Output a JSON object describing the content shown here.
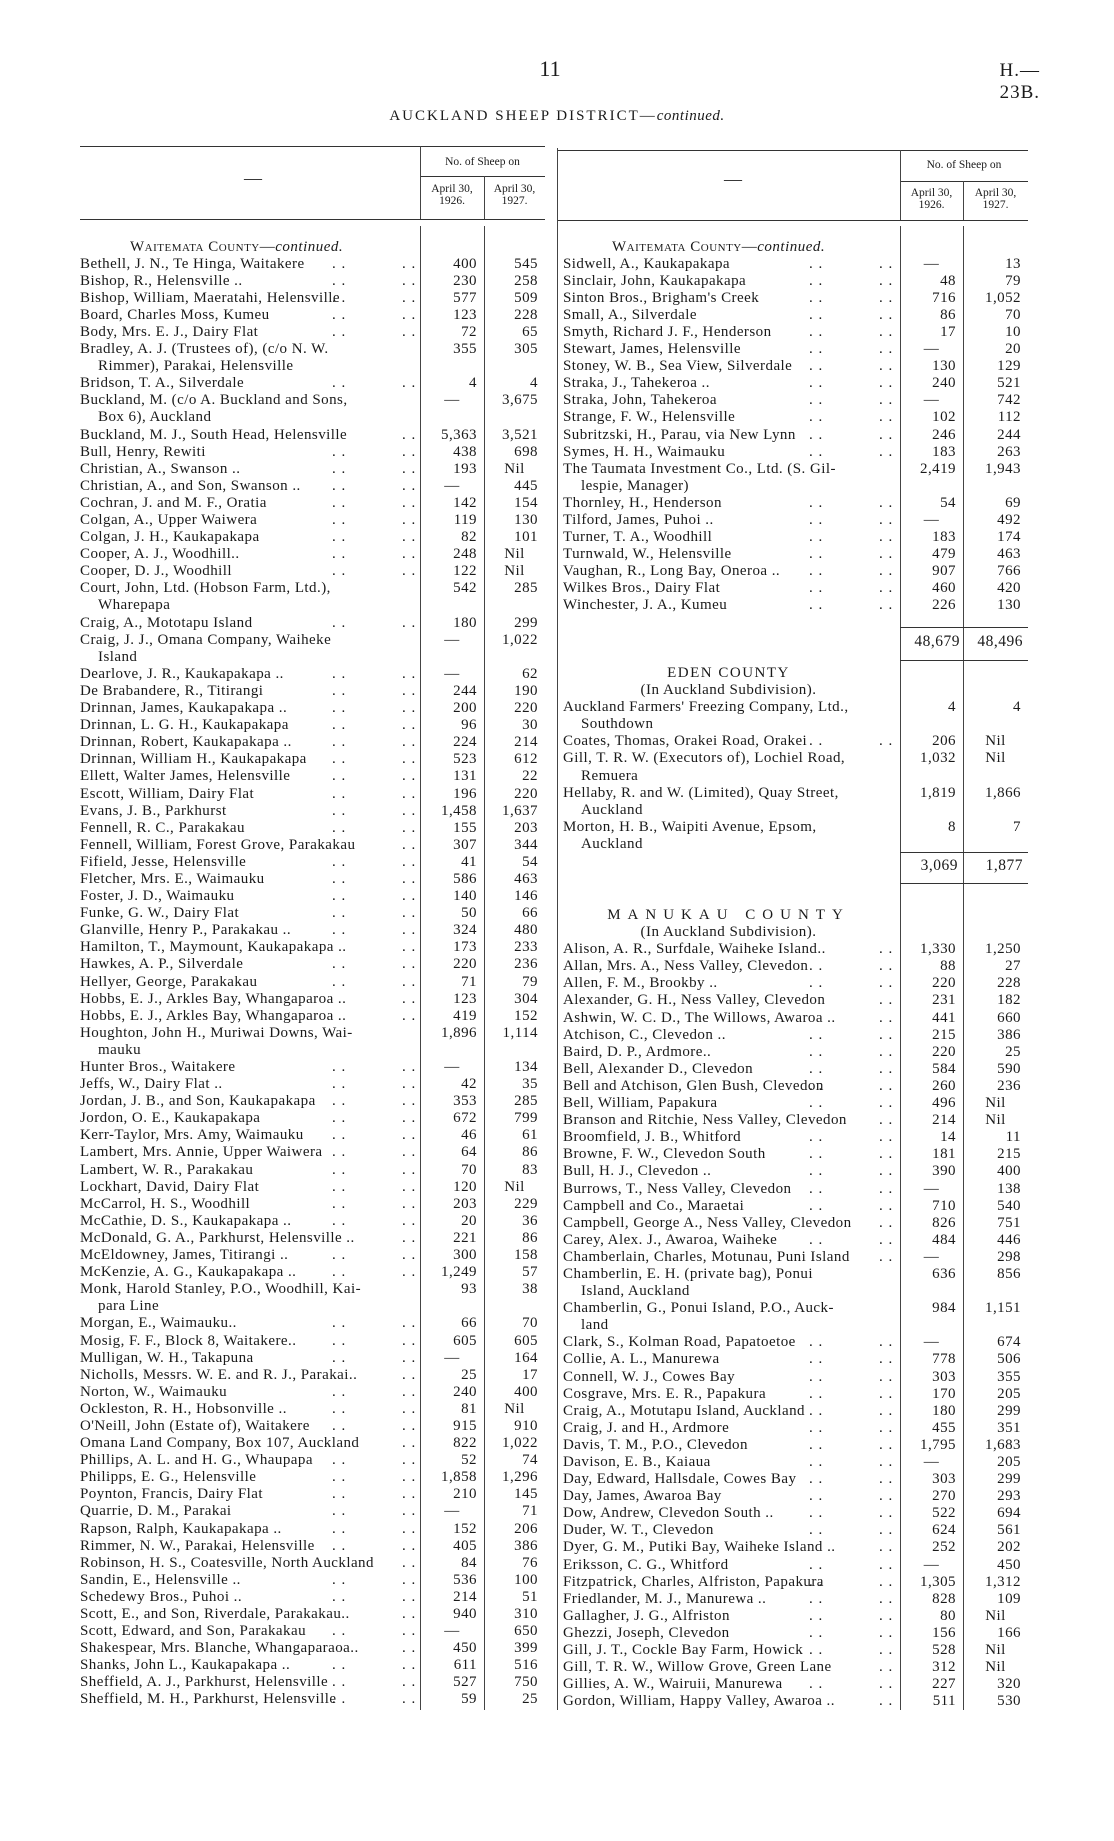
{
  "header": {
    "page_number": "11",
    "doc_ref": "H.—23B.",
    "title": "AUCKLAND SHEEP DISTRICT—",
    "title_italic": "continued."
  },
  "columns": {
    "name_header": "—",
    "group": "No. of Sheep on",
    "col1_line1": "April 30,",
    "col1_line2": "1926.",
    "col2_line1": "April 30,",
    "col2_line2": "1927."
  },
  "left": {
    "heading": "Waitemata County—",
    "heading_italic": "continued.",
    "rows": [
      [
        "Bethell, J. N., Te Hinga, Waitakere",
        "400",
        "545"
      ],
      [
        "Bishop, R., Helensville ..",
        "230",
        "258"
      ],
      [
        "Bishop, William, Maeratahi, Helensville",
        "577",
        "509"
      ],
      [
        "Board, Charles Moss, Kumeu",
        "123",
        "228"
      ],
      [
        "Body, Mrs. E. J., Dairy Flat",
        "72",
        "65"
      ],
      [
        "Bradley, A. J. (Trustees of), (c/o N. W.\nRimmer), Parakai, Helensville",
        "355",
        "305"
      ],
      [
        "Bridson, T. A., Silverdale",
        "4",
        "4"
      ],
      [
        "Buckland, M. (c/o A. Buckland and Sons,\nBox 6), Auckland",
        "—",
        "3,675"
      ],
      [
        "Buckland, M. J., South Head, Helensville",
        "5,363",
        "3,521"
      ],
      [
        "Bull, Henry, Rewiti",
        "438",
        "698"
      ],
      [
        "Christian, A., Swanson ..",
        "193",
        "Nil"
      ],
      [
        "Christian, A., and Son, Swanson ..",
        "—",
        "445"
      ],
      [
        "Cochran, J. and M. F., Oratia",
        "142",
        "154"
      ],
      [
        "Colgan, A., Upper Waiwera",
        "119",
        "130"
      ],
      [
        "Colgan, J. H., Kaukapakapa",
        "82",
        "101"
      ],
      [
        "Cooper, A. J., Woodhill..",
        "248",
        "Nil"
      ],
      [
        "Cooper, D. J., Woodhill",
        "122",
        "Nil"
      ],
      [
        "Court, John, Ltd. (Hobson Farm, Ltd.),\nWharepapa",
        "542",
        "285"
      ],
      [
        "Craig, A., Mototapu Island",
        "180",
        "299"
      ],
      [
        "Craig, J. J., Omana Company, Waiheke\nIsland",
        "—",
        "1,022"
      ],
      [
        "Dearlove, J. R., Kaukapakapa ..",
        "—",
        "62"
      ],
      [
        "De Brabandere, R., Titirangi",
        "244",
        "190"
      ],
      [
        "Drinnan, James, Kaukapakapa ..",
        "200",
        "220"
      ],
      [
        "Drinnan, L. G. H., Kaukapakapa",
        "96",
        "30"
      ],
      [
        "Drinnan, Robert, Kaukapakapa ..",
        "224",
        "214"
      ],
      [
        "Drinnan, William H., Kaukapakapa",
        "523",
        "612"
      ],
      [
        "Ellett, Walter James, Helensville",
        "131",
        "22"
      ],
      [
        "Escott, William, Dairy Flat",
        "196",
        "220"
      ],
      [
        "Evans, J. B., Parkhurst",
        "1,458",
        "1,637"
      ],
      [
        "Fennell, R. C., Parakakau",
        "155",
        "203"
      ],
      [
        "Fennell, William, Forest Grove, Parakakau",
        "307",
        "344"
      ],
      [
        "Fifield, Jesse, Helensville",
        "41",
        "54"
      ],
      [
        "Fletcher, Mrs. E., Waimauku",
        "586",
        "463"
      ],
      [
        "Foster, J. D., Waimauku",
        "140",
        "146"
      ],
      [
        "Funke, G. W., Dairy Flat",
        "50",
        "66"
      ],
      [
        "Glanville, Henry P., Parakakau ..",
        "324",
        "480"
      ],
      [
        "Hamilton, T., Maymount, Kaukapakapa ..",
        "173",
        "233"
      ],
      [
        "Hawkes, A. P., Silverdale",
        "220",
        "236"
      ],
      [
        "Hellyer, George, Parakakau",
        "71",
        "79"
      ],
      [
        "Hobbs, E. J., Arkles Bay, Whangaparoa ..",
        "123",
        "304"
      ],
      [
        "Hobbs, E. J., Arkles Bay, Whangaparoa ..",
        "419",
        "152"
      ],
      [
        "Houghton, John H., Muriwai Downs, Wai-\nmauku",
        "1,896",
        "1,114"
      ],
      [
        "Hunter Bros., Waitakere",
        "—",
        "134"
      ],
      [
        "Jeffs, W., Dairy Flat ..",
        "42",
        "35"
      ],
      [
        "Jordan, J. B., and Son, Kaukapakapa",
        "353",
        "285"
      ],
      [
        "Jordon, O. E., Kaukapakapa",
        "672",
        "799"
      ],
      [
        "Kerr-Taylor, Mrs. Amy, Waimauku",
        "46",
        "61"
      ],
      [
        "Lambert, Mrs. Annie, Upper Waiwera",
        "64",
        "86"
      ],
      [
        "Lambert, W. R., Parakakau",
        "70",
        "83"
      ],
      [
        "Lockhart, David, Dairy Flat",
        "120",
        "Nil"
      ],
      [
        "McCarrol, H. S., Woodhill",
        "203",
        "229"
      ],
      [
        "McCathie, D. S., Kaukapakapa ..",
        "20",
        "36"
      ],
      [
        "McDonald, G. A., Parkhurst, Helensville ..",
        "221",
        "86"
      ],
      [
        "McEldowney, James, Titirangi ..",
        "300",
        "158"
      ],
      [
        "McKenzie, A. G., Kaukapakapa ..",
        "1,249",
        "57"
      ],
      [
        "Monk, Harold Stanley, P.O., Woodhill, Kai-\npara Line",
        "93",
        "38"
      ],
      [
        "Morgan, E., Waimauku..",
        "66",
        "70"
      ],
      [
        "Mosig, F. F., Block 8, Waitakere..",
        "605",
        "605"
      ],
      [
        "Mulligan, W. H., Takapuna",
        "—",
        "164"
      ],
      [
        "Nicholls, Messrs. W. E. and R. J., Parakai..",
        "25",
        "17"
      ],
      [
        "Norton, W., Waimauku",
        "240",
        "400"
      ],
      [
        "Ockleston, R. H., Hobsonville ..",
        "81",
        "Nil"
      ],
      [
        "O'Neill, John (Estate of), Waitakere",
        "915",
        "910"
      ],
      [
        "Omana Land Company, Box 107, Auckland",
        "822",
        "1,022"
      ],
      [
        "Phillips, A. L. and H. G., Whaupapa",
        "52",
        "74"
      ],
      [
        "Philipps, E. G., Helensville",
        "1,858",
        "1,296"
      ],
      [
        "Poynton, Francis, Dairy Flat",
        "210",
        "145"
      ],
      [
        "Quarrie, D. M., Parakai",
        "—",
        "71"
      ],
      [
        "Rapson, Ralph, Kaukapakapa ..",
        "152",
        "206"
      ],
      [
        "Rimmer, N. W., Parakai, Helensville",
        "405",
        "386"
      ],
      [
        "Robinson, H. S., Coatesville, North Auckland",
        "84",
        "76"
      ],
      [
        "Sandin, E., Helensville ..",
        "536",
        "100"
      ],
      [
        "Schedewy Bros., Puhoi ..",
        "214",
        "51"
      ],
      [
        "Scott, E., and Son, Riverdale, Parakakau..",
        "940",
        "310"
      ],
      [
        "Scott, Edward, and Son, Parakakau",
        "—",
        "650"
      ],
      [
        "Shakespear, Mrs. Blanche, Whangaparaoa..",
        "450",
        "399"
      ],
      [
        "Shanks, John L., Kaukapakapa ..",
        "611",
        "516"
      ],
      [
        "Sheffield, A. J., Parkhurst, Helensville",
        "527",
        "750"
      ],
      [
        "Sheffield, M. H., Parkhurst, Helensville",
        "59",
        "25"
      ]
    ]
  },
  "right": {
    "waitemata": {
      "heading": "Waitemata County—",
      "heading_italic": "continued.",
      "rows": [
        [
          "Sidwell, A., Kaukapakapa",
          "—",
          "13"
        ],
        [
          "Sinclair, John, Kaukapakapa",
          "48",
          "79"
        ],
        [
          "Sinton Bros., Brigham's Creek",
          "716",
          "1,052"
        ],
        [
          "Small, A., Silverdale",
          "86",
          "70"
        ],
        [
          "Smyth, Richard J. F., Henderson",
          "17",
          "10"
        ],
        [
          "Stewart, James, Helensville",
          "—",
          "20"
        ],
        [
          "Stoney, W. B., Sea View, Silverdale",
          "130",
          "129"
        ],
        [
          "Straka, J., Tahekeroa ..",
          "240",
          "521"
        ],
        [
          "Straka, John, Tahekeroa",
          "—",
          "742"
        ],
        [
          "Strange, F. W., Helensville",
          "102",
          "112"
        ],
        [
          "Subritzski, H., Parau, via New Lynn",
          "246",
          "244"
        ],
        [
          "Symes, H. H., Waimauku",
          "183",
          "263"
        ],
        [
          "The Taumata Investment Co., Ltd. (S. Gil-\nlespie, Manager)",
          "2,419",
          "1,943"
        ],
        [
          "Thornley, H., Henderson",
          "54",
          "69"
        ],
        [
          "Tilford, James, Puhoi ..",
          "—",
          "492"
        ],
        [
          "Turner, T. A., Woodhill",
          "183",
          "174"
        ],
        [
          "Turnwald, W., Helensville",
          "479",
          "463"
        ],
        [
          "Vaughan, R., Long Bay, Oneroa ..",
          "907",
          "766"
        ],
        [
          "Wilkes Bros., Dairy Flat",
          "460",
          "420"
        ],
        [
          "Winchester, J. A., Kumeu",
          "226",
          "130"
        ]
      ],
      "total": [
        "48,679",
        "48,496"
      ]
    },
    "eden": {
      "heading": "EDEN COUNTY",
      "subheading": "(In Auckland Subdivision).",
      "rows": [
        [
          "Auckland Farmers' Freezing Company, Ltd.,\nSouthdown",
          "4",
          "4"
        ],
        [
          "Coates, Thomas, Orakei Road, Orakei",
          "206",
          "Nil"
        ],
        [
          "Gill, T. R. W. (Executors of), Lochiel Road,\nRemuera",
          "1,032",
          "Nil"
        ],
        [
          "Hellaby, R. and W. (Limited), Quay Street,\nAuckland",
          "1,819",
          "1,866"
        ],
        [
          "Morton, H. B., Waipiti Avenue, Epsom,\nAuckland",
          "8",
          "7"
        ]
      ],
      "total": [
        "3,069",
        "1,877"
      ]
    },
    "manukau": {
      "heading": "MANUKAU COUNTY",
      "subheading": "(In Auckland Subdivision).",
      "rows": [
        [
          "Alison, A. R., Surfdale, Waiheke Island..",
          "1,330",
          "1,250"
        ],
        [
          "Allan, Mrs. A., Ness Valley, Clevedon",
          "88",
          "27"
        ],
        [
          "Allen, F. M., Brookby ..",
          "220",
          "228"
        ],
        [
          "Alexander, G. H., Ness Valley, Clevedon",
          "231",
          "182"
        ],
        [
          "Ashwin, W. C. D., The Willows, Awaroa ..",
          "441",
          "660"
        ],
        [
          "Atchison, C., Clevedon ..",
          "215",
          "386"
        ],
        [
          "Baird, D. P., Ardmore..",
          "220",
          "25"
        ],
        [
          "Bell, Alexander D., Clevedon",
          "584",
          "590"
        ],
        [
          "Bell and Atchison, Glen Bush, Clevedon",
          "260",
          "236"
        ],
        [
          "Bell, William, Papakura",
          "496",
          "Nil"
        ],
        [
          "Branson and Ritchie, Ness Valley, Clevedon",
          "214",
          "Nil"
        ],
        [
          "Broomfield, J. B., Whitford",
          "14",
          "11"
        ],
        [
          "Browne, F. W., Clevedon South",
          "181",
          "215"
        ],
        [
          "Bull, H. J., Clevedon ..",
          "390",
          "400"
        ],
        [
          "Burrows, T., Ness Valley, Clevedon",
          "—",
          "138"
        ],
        [
          "Campbell and Co., Maraetai",
          "710",
          "540"
        ],
        [
          "Campbell, George A., Ness Valley, Clevedon",
          "826",
          "751"
        ],
        [
          "Carey, Alex. J., Awaroa, Waiheke",
          "484",
          "446"
        ],
        [
          "Chamberlain, Charles, Motunau, Puni Island",
          "—",
          "298"
        ],
        [
          "Chamberlin, E. H. (private bag), Ponui\nIsland, Auckland",
          "636",
          "856"
        ],
        [
          "Chamberlin, G., Ponui Island, P.O., Auck-\nland",
          "984",
          "1,151"
        ],
        [
          "Clark, S., Kolman Road, Papatoetoe",
          "—",
          "674"
        ],
        [
          "Collie, A. L., Manurewa",
          "778",
          "506"
        ],
        [
          "Connell, W. J., Cowes Bay",
          "303",
          "355"
        ],
        [
          "Cosgrave, Mrs. E. R., Papakura",
          "170",
          "205"
        ],
        [
          "Craig, A., Motutapu Island, Auckland",
          "180",
          "299"
        ],
        [
          "Craig, J. and H., Ardmore",
          "455",
          "351"
        ],
        [
          "Davis, T. M., P.O., Clevedon",
          "1,795",
          "1,683"
        ],
        [
          "Davison, E. B., Kaiaua",
          "—",
          "205"
        ],
        [
          "Day, Edward, Hallsdale, Cowes Bay",
          "303",
          "299"
        ],
        [
          "Day, James, Awaroa Bay",
          "270",
          "293"
        ],
        [
          "Dow, Andrew, Clevedon South ..",
          "522",
          "694"
        ],
        [
          "Duder, W. T., Clevedon",
          "624",
          "561"
        ],
        [
          "Dyer, G. M., Putiki Bay, Waiheke Island ..",
          "252",
          "202"
        ],
        [
          "Eriksson, C. G., Whitford",
          "—",
          "450"
        ],
        [
          "Fitzpatrick, Charles, Alfriston, Papakura",
          "1,305",
          "1,312"
        ],
        [
          "Friedlander, M. J., Manurewa ..",
          "828",
          "109"
        ],
        [
          "Gallagher, J. G., Alfriston",
          "80",
          "Nil"
        ],
        [
          "Ghezzi, Joseph, Clevedon",
          "156",
          "166"
        ],
        [
          "Gill, J. T., Cockle Bay Farm, Howick",
          "528",
          "Nil"
        ],
        [
          "Gill, T. R. W., Willow Grove, Green Lane",
          "312",
          "Nil"
        ],
        [
          "Gillies, A. W., Wairuii, Manurewa",
          "227",
          "320"
        ],
        [
          "Gordon, William, Happy Valley, Awaroa ..",
          "511",
          "530"
        ]
      ]
    }
  }
}
